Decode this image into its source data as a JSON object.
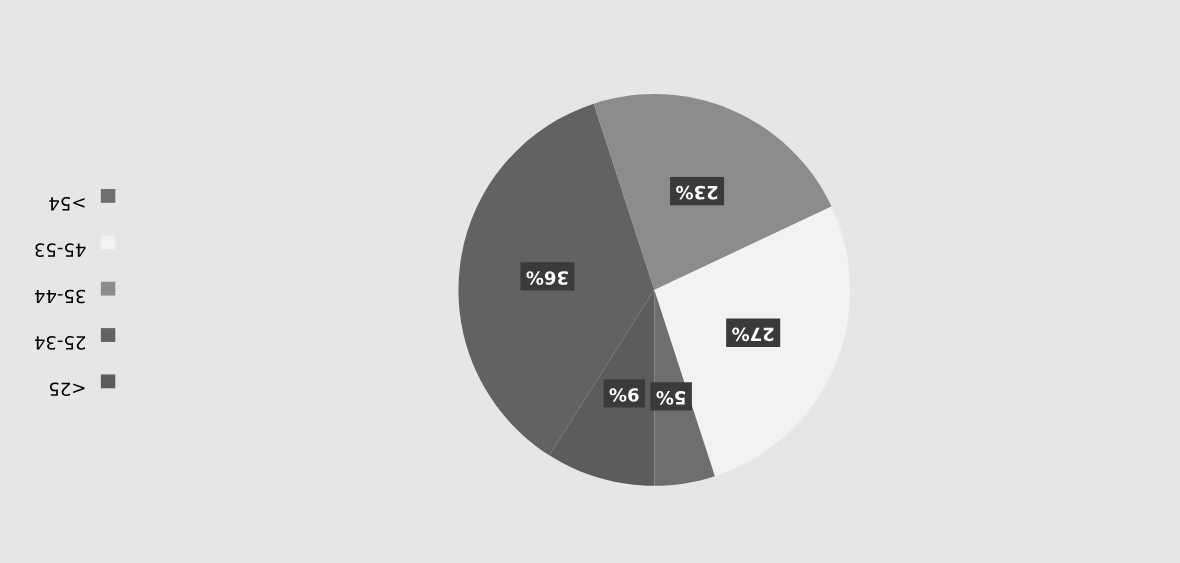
{
  "chart_data": {
    "type": "pie",
    "categories": [
      "<25",
      "25-34",
      "35-44",
      "45-53",
      ">54"
    ],
    "values": [
      9,
      36,
      23,
      27,
      5
    ],
    "colors": [
      "#5c5c5c",
      "#626262",
      "#8c8c8c",
      "#f2f2f2",
      "#6e6e6e"
    ],
    "value_labels": [
      "9%",
      "36%",
      "23%",
      "27%",
      "5%"
    ],
    "legend": "left"
  }
}
